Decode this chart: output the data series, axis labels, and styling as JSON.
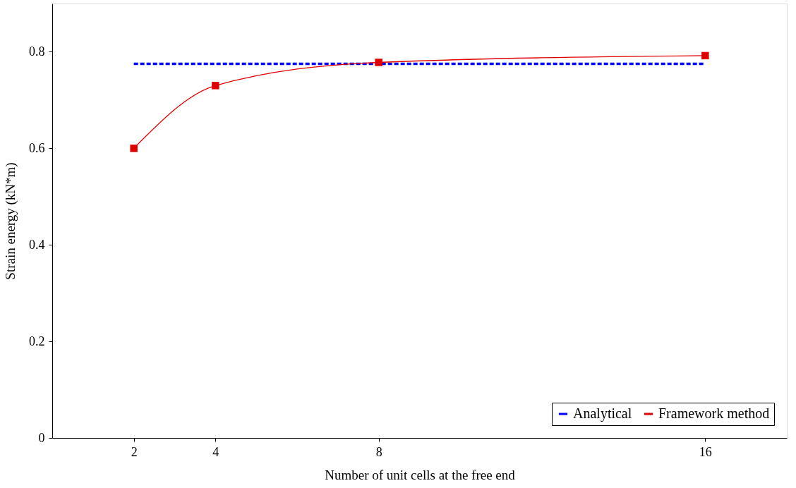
{
  "chart_data": {
    "type": "line",
    "xlabel": "Number of unit cells at the free end",
    "ylabel": "Strain energy (kN*m)",
    "xlim": [
      0,
      18
    ],
    "xticks": [
      2,
      4,
      8,
      16
    ],
    "ylim": [
      0,
      0.9
    ],
    "yticks": [
      0,
      0.2,
      0.4,
      0.6,
      0.8
    ],
    "grid": false,
    "legend": "bottom right",
    "series": [
      {
        "name": "Analytical",
        "color": "#0000ff",
        "x": [
          2,
          16
        ],
        "values": [
          0.775,
          0.775
        ],
        "line_style": "dashed",
        "marker": "none"
      },
      {
        "name": "Framework method",
        "color": "#e00000",
        "x": [
          2,
          4,
          8,
          16
        ],
        "values": [
          0.6,
          0.73,
          0.778,
          0.792
        ],
        "line_style": "solid",
        "marker": "square"
      }
    ]
  }
}
